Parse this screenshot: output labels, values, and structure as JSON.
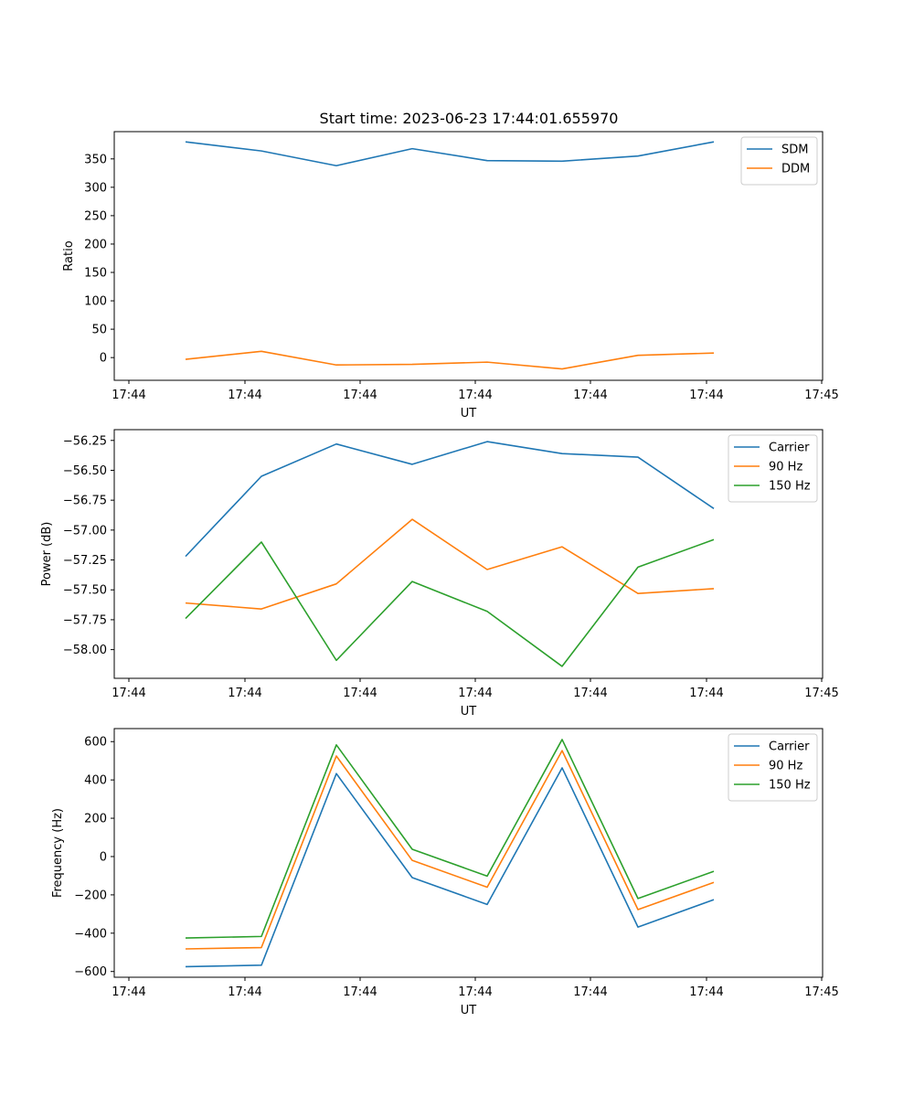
{
  "figure": {
    "title": "Start time: 2023-06-23 17:44:01.655970"
  },
  "colors": {
    "blue": "#1f77b4",
    "orange": "#ff7f0e",
    "green": "#2ca02c"
  },
  "chart_data": [
    {
      "type": "line",
      "title": "Start time: 2023-06-23 17:44:01.655970",
      "xlabel": "UT",
      "ylabel": "Ratio",
      "x_tick_labels": [
        "17:44",
        "17:44",
        "17:44",
        "17:44",
        "17:44",
        "17:44",
        "17:45"
      ],
      "y_ticks": [
        0,
        50,
        100,
        150,
        200,
        250,
        300,
        350
      ],
      "ylim": [
        -40,
        398
      ],
      "legend": "top-right",
      "grid": false,
      "series": [
        {
          "name": "SDM",
          "color": "blue",
          "values": [
            380,
            364,
            338,
            368,
            347,
            346,
            355,
            380
          ]
        },
        {
          "name": "DDM",
          "color": "orange",
          "values": [
            -3,
            11,
            -13,
            -12,
            -8,
            -20,
            4,
            8
          ]
        }
      ]
    },
    {
      "type": "line",
      "title": "",
      "xlabel": "UT",
      "ylabel": "Power (dB)",
      "x_tick_labels": [
        "17:44",
        "17:44",
        "17:44",
        "17:44",
        "17:44",
        "17:44",
        "17:45"
      ],
      "y_ticks": [
        -58.0,
        -57.75,
        -57.5,
        -57.25,
        -57.0,
        -56.75,
        -56.5,
        -56.25
      ],
      "y_tick_labels": [
        "−58.00",
        "−57.75",
        "−57.50",
        "−57.25",
        "−57.00",
        "−56.75",
        "−56.50",
        "−56.25"
      ],
      "ylim": [
        -58.24,
        -56.16
      ],
      "legend": "top-right",
      "grid": false,
      "series": [
        {
          "name": "Carrier",
          "color": "blue",
          "values": [
            -57.22,
            -56.55,
            -56.28,
            -56.45,
            -56.26,
            -56.36,
            -56.39,
            -56.82
          ]
        },
        {
          "name": "90 Hz",
          "color": "orange",
          "values": [
            -57.61,
            -57.66,
            -57.45,
            -56.91,
            -57.33,
            -57.14,
            -57.53,
            -57.49
          ]
        },
        {
          "name": "150 Hz",
          "color": "green",
          "values": [
            -57.74,
            -57.1,
            -58.09,
            -57.43,
            -57.68,
            -58.14,
            -57.31,
            -57.08
          ]
        }
      ]
    },
    {
      "type": "line",
      "title": "",
      "xlabel": "UT",
      "ylabel": "Frequency (Hz)",
      "x_tick_labels": [
        "17:44",
        "17:44",
        "17:44",
        "17:44",
        "17:44",
        "17:44",
        "17:45"
      ],
      "y_ticks": [
        -600,
        -400,
        -200,
        0,
        200,
        400,
        600
      ],
      "y_tick_labels": [
        "−600",
        "−400",
        "−200",
        "0",
        "200",
        "400",
        "600"
      ],
      "ylim": [
        -630,
        668
      ],
      "legend": "top-right",
      "grid": false,
      "series": [
        {
          "name": "Carrier",
          "color": "blue",
          "values": [
            -575,
            -567,
            433,
            -110,
            -250,
            463,
            -368,
            -225
          ]
        },
        {
          "name": "90 Hz",
          "color": "orange",
          "values": [
            -482,
            -475,
            525,
            -20,
            -160,
            553,
            -277,
            -135
          ]
        },
        {
          "name": "150 Hz",
          "color": "green",
          "values": [
            -425,
            -417,
            583,
            38,
            -102,
            611,
            -219,
            -77
          ]
        }
      ]
    }
  ]
}
